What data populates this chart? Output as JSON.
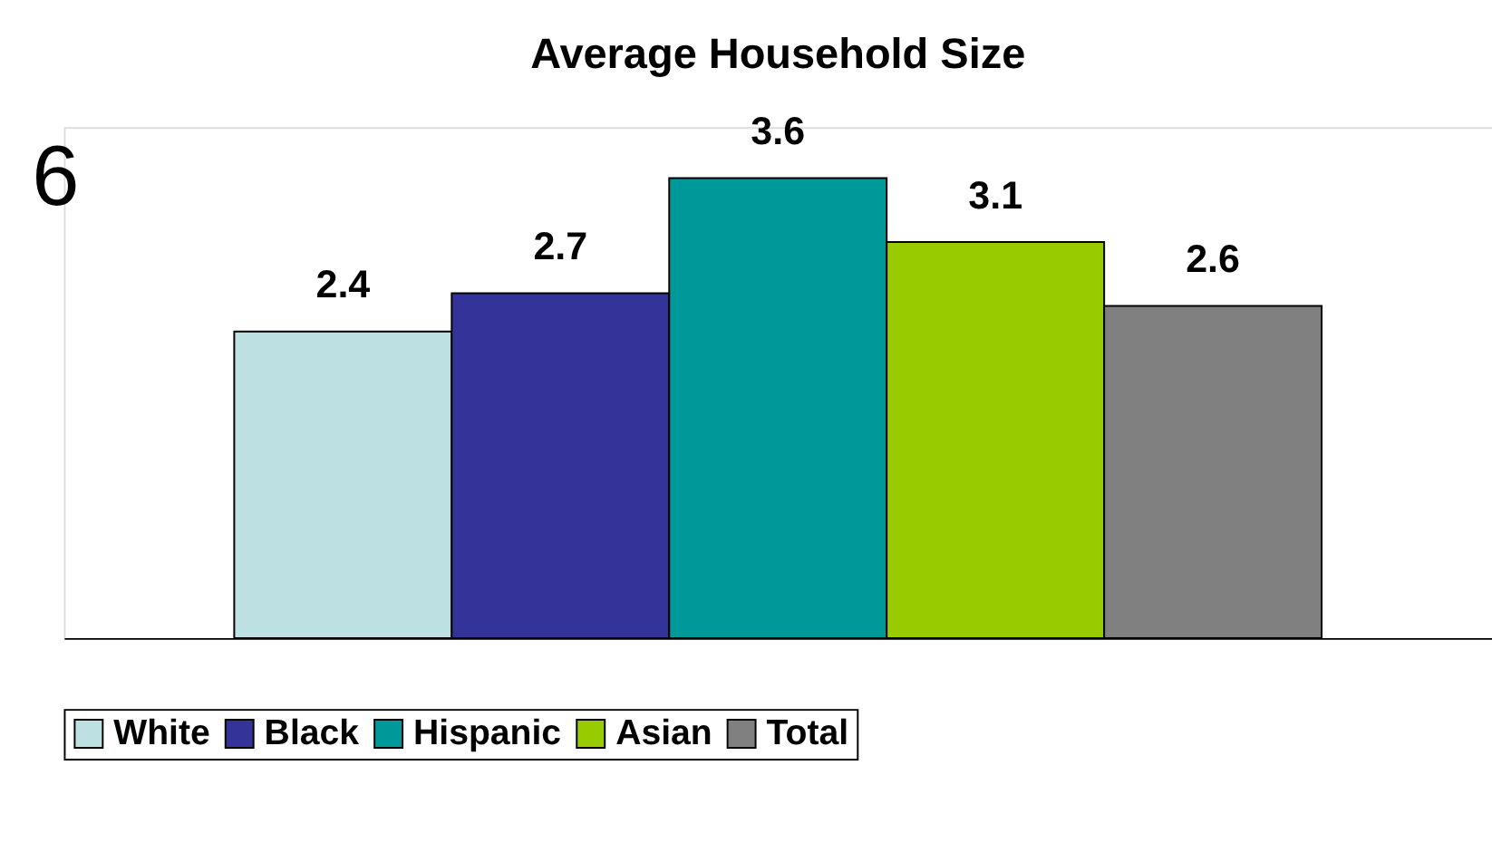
{
  "chart_data": {
    "type": "bar",
    "title": "Average Household Size",
    "categories": [
      null
    ],
    "series": [
      {
        "name": "White",
        "color": "#bde0e3",
        "values": [
          2.4
        ]
      },
      {
        "name": "Black",
        "color": "#333399",
        "values": [
          2.7
        ]
      },
      {
        "name": "Hispanic",
        "color": "#009999",
        "values": [
          3.6
        ]
      },
      {
        "name": "Asian",
        "color": "#99cc00",
        "values": [
          3.1
        ]
      },
      {
        "name": "Total",
        "color": "#808080",
        "values": [
          2.6
        ]
      }
    ],
    "ylim": [
      0,
      4
    ],
    "data_labels": true,
    "legend": "bottom",
    "grid": false,
    "tick_labels": false,
    "annotations": [
      "6"
    ]
  }
}
